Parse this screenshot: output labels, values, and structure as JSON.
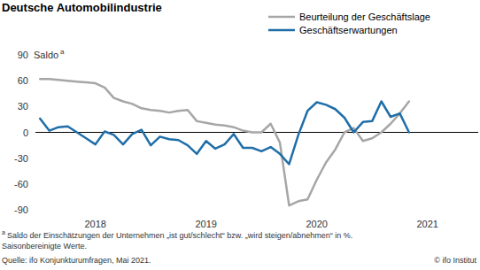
{
  "chart_data": {
    "type": "line",
    "title": "Deutsche Automobilindustrie",
    "y_label": "Saldo",
    "footnote_marker": "a",
    "footnote": "Saldo der Einschätzungen der Unternehmen „ist gut/schlecht“ bzw. „wird steigen/abnehmen“ in %.",
    "note": "Saisonbereinigte Werte.",
    "source": "Quelle: ifo Konjunkturumfragen, Mai 2021.",
    "credit": "© ifo Institut",
    "categories": [
      null,
      null,
      null,
      null,
      null,
      null,
      "2018",
      null,
      null,
      null,
      null,
      null,
      null,
      null,
      null,
      null,
      null,
      null,
      "2019",
      null,
      null,
      null,
      null,
      null,
      null,
      null,
      null,
      null,
      null,
      null,
      "2020",
      null,
      null,
      null,
      null,
      null,
      null,
      null,
      null,
      null,
      null,
      null,
      "2021",
      null,
      null,
      null,
      null,
      null
    ],
    "series": [
      {
        "name": "Beurteilung der Geschäftslage",
        "color": "#a6a6a6",
        "values": [
          62,
          62,
          61,
          60,
          59,
          58,
          57,
          52,
          40,
          36,
          33,
          28,
          26,
          25,
          23,
          25,
          26,
          13,
          11,
          9,
          8,
          6,
          2,
          0,
          0,
          10,
          -12,
          -85,
          -80,
          -78,
          -55,
          -35,
          -20,
          0,
          5,
          -10,
          -7,
          0,
          10,
          22,
          36,
          null,
          null,
          null,
          null,
          null,
          null,
          null
        ]
      },
      {
        "name": "Geschäftserwartungen",
        "color": "#1f6ea8",
        "values": [
          16,
          2,
          6,
          7,
          0,
          -7,
          -14,
          1,
          -3,
          -14,
          -2,
          3,
          -15,
          -5,
          -8,
          -9,
          -15,
          -25,
          -10,
          -19,
          -14,
          -2,
          -18,
          -18,
          -22,
          -17,
          -25,
          -37,
          -3,
          25,
          35,
          32,
          27,
          17,
          0,
          12,
          13,
          36,
          18,
          22,
          0,
          null,
          null,
          null,
          null,
          null,
          null,
          null
        ]
      }
    ],
    "ylim": [
      -90,
      90
    ],
    "yticks": [
      -90,
      -60,
      -30,
      0,
      30,
      60,
      90
    ],
    "grid": false,
    "legend": "top-right"
  }
}
